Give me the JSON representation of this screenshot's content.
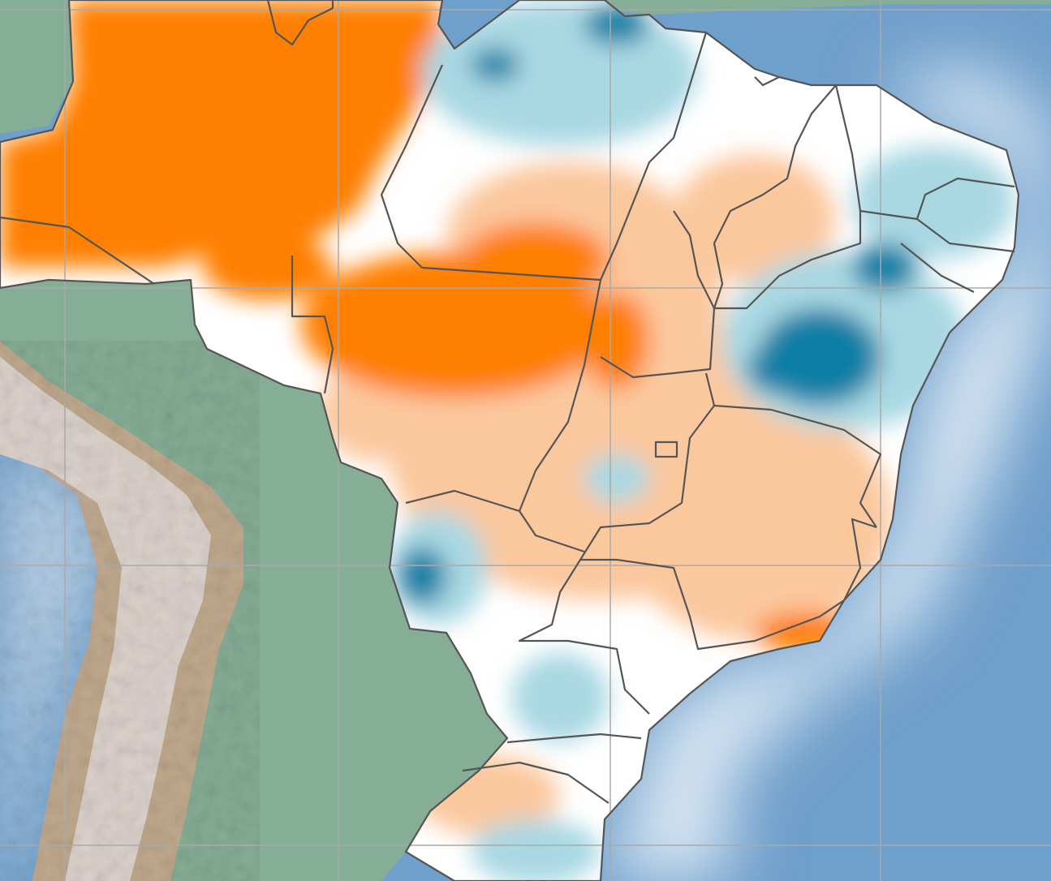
{
  "map": {
    "colors": {
      "ocean": "#6f9fcb",
      "ocean_coast_glow": "#eaf2f9",
      "land": "#86ad96",
      "andes_high": "#dcd2cc",
      "andes_slope": "#c7a98c",
      "anomaly_positive_strong": "#ff7f00",
      "anomaly_positive_light": "#fbc89e",
      "anomaly_neutral": "#ffffff",
      "anomaly_negative_light": "#a9d8e3",
      "anomaly_negative_strong": "#0f7fa6",
      "graticule": "#a9a9a9",
      "borders": "#555555"
    },
    "graticule_visible": true,
    "borders_visible": true
  }
}
